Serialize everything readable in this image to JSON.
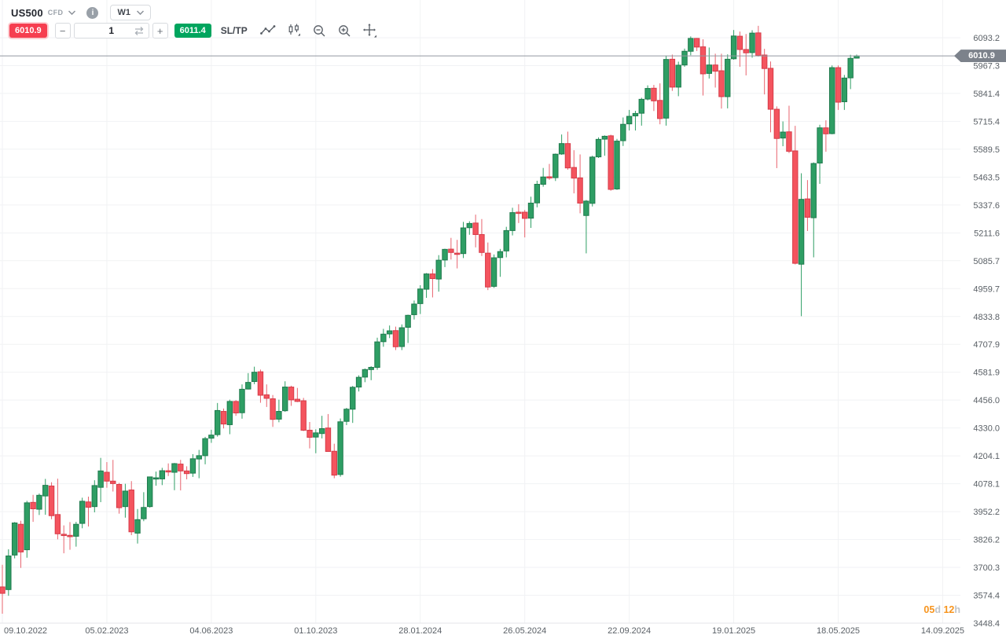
{
  "header": {
    "symbol": "US500",
    "instrument_type": "CFD",
    "timeframe": "W1"
  },
  "order_panel": {
    "sell_price": "6010.9",
    "buy_price": "6011.4",
    "volume_value": "1",
    "minus_label": "−",
    "plus_label": "+",
    "sltp_label": "SL/TP"
  },
  "countdown": {
    "days": "05",
    "days_unit": "d",
    "hours": "12",
    "hours_unit": "h"
  },
  "colors": {
    "up_fill": "#2e9e64",
    "up_border": "#1f7a4d",
    "down_fill": "#f4545e",
    "down_border": "#d63c49",
    "down_wick": "#e8636e",
    "grid": "#f1f2f4",
    "axis_border": "#e4e6e9",
    "axis_text": "#5a6066",
    "price_line": "#9298a0",
    "price_tag_bg": "#7c828b",
    "sell_badge": "#f63e50",
    "buy_badge": "#00a55e",
    "countdown_accent": "#f7941d"
  },
  "chart_data": {
    "type": "candlestick",
    "title": "US500 CFD weekly candlestick chart",
    "symbol": "US500",
    "timeframe": "W1",
    "current_price": 6010.9,
    "current_price_label": "6010.9",
    "ylim": [
      3448.4,
      6093.2
    ],
    "grid": true,
    "y_ticks": [
      "6093.2",
      "5967.3",
      "5841.4",
      "5715.4",
      "5589.5",
      "5463.5",
      "5337.6",
      "5211.6",
      "5085.7",
      "4959.7",
      "4833.8",
      "4707.9",
      "4581.9",
      "4456.0",
      "4330.0",
      "4204.1",
      "4078.1",
      "3952.2",
      "3826.2",
      "3700.3",
      "3574.4",
      "3448.4"
    ],
    "x_ticks": [
      "09.10.2022",
      "05.02.2023",
      "04.06.2023",
      "01.10.2023",
      "28.01.2024",
      "26.05.2024",
      "22.09.2024",
      "19.01.2025",
      "18.05.2025",
      "14.09.2025"
    ],
    "weeks_per_x_tick": 17,
    "first_candle_week": "09.10.2022",
    "candles_ohlc": [
      [
        3612,
        3712,
        3491,
        3583
      ],
      [
        3600,
        3782,
        3572,
        3752
      ],
      [
        3756,
        3905,
        3741,
        3901
      ],
      [
        3895,
        3911,
        3698,
        3770
      ],
      [
        3780,
        4001,
        3744,
        3992
      ],
      [
        3994,
        4028,
        3906,
        3965
      ],
      [
        3963,
        4034,
        3937,
        4026
      ],
      [
        4023,
        4100,
        3938,
        4071
      ],
      [
        4068,
        4085,
        3918,
        3934
      ],
      [
        3939,
        4101,
        3827,
        3852
      ],
      [
        3850,
        3890,
        3764,
        3844
      ],
      [
        3845,
        3905,
        3780,
        3839
      ],
      [
        3841,
        3906,
        3794,
        3895
      ],
      [
        3899,
        4015,
        3877,
        3999
      ],
      [
        3996,
        4020,
        3885,
        3972
      ],
      [
        3975,
        4094,
        3949,
        4070
      ],
      [
        4062,
        4195,
        3995,
        4136
      ],
      [
        4130,
        4176,
        4060,
        4090
      ],
      [
        4090,
        4186,
        4043,
        4079
      ],
      [
        4075,
        4082,
        3943,
        3970
      ],
      [
        3975,
        4078,
        3925,
        4045
      ],
      [
        4050,
        4090,
        3846,
        3861
      ],
      [
        3855,
        3964,
        3808,
        3916
      ],
      [
        3920,
        4040,
        3909,
        3971
      ],
      [
        3975,
        4110,
        3970,
        4109
      ],
      [
        4105,
        4133,
        4069,
        4105
      ],
      [
        4100,
        4150,
        4072,
        4137
      ],
      [
        4137,
        4170,
        4113,
        4133
      ],
      [
        4130,
        4172,
        4049,
        4169
      ],
      [
        4167,
        4186,
        4048,
        4136
      ],
      [
        4136,
        4157,
        4098,
        4124
      ],
      [
        4126,
        4212,
        4109,
        4191
      ],
      [
        4190,
        4231,
        4103,
        4205
      ],
      [
        4205,
        4290,
        4166,
        4282
      ],
      [
        4284,
        4322,
        4263,
        4298
      ],
      [
        4300,
        4443,
        4291,
        4409
      ],
      [
        4405,
        4418,
        4328,
        4348
      ],
      [
        4345,
        4458,
        4302,
        4450
      ],
      [
        4450,
        4456,
        4385,
        4398
      ],
      [
        4399,
        4527,
        4372,
        4505
      ],
      [
        4506,
        4578,
        4504,
        4536
      ],
      [
        4540,
        4607,
        4528,
        4582
      ],
      [
        4584,
        4594,
        4444,
        4478
      ],
      [
        4480,
        4527,
        4425,
        4464
      ],
      [
        4462,
        4479,
        4335,
        4369
      ],
      [
        4370,
        4458,
        4356,
        4405
      ],
      [
        4408,
        4541,
        4403,
        4515
      ],
      [
        4515,
        4521,
        4430,
        4457
      ],
      [
        4460,
        4511,
        4447,
        4450
      ],
      [
        4453,
        4466,
        4316,
        4320
      ],
      [
        4320,
        4357,
        4238,
        4288
      ],
      [
        4289,
        4324,
        4216,
        4308
      ],
      [
        4305,
        4385,
        4283,
        4327
      ],
      [
        4330,
        4393,
        4223,
        4224
      ],
      [
        4225,
        4259,
        4103,
        4117
      ],
      [
        4120,
        4373,
        4110,
        4358
      ],
      [
        4360,
        4421,
        4343,
        4415
      ],
      [
        4415,
        4520,
        4353,
        4514
      ],
      [
        4515,
        4568,
        4495,
        4559
      ],
      [
        4560,
        4599,
        4537,
        4594
      ],
      [
        4594,
        4609,
        4546,
        4604
      ],
      [
        4604,
        4738,
        4593,
        4719
      ],
      [
        4720,
        4778,
        4697,
        4754
      ],
      [
        4755,
        4793,
        4736,
        4769
      ],
      [
        4770,
        4788,
        4682,
        4697
      ],
      [
        4698,
        4798,
        4682,
        4783
      ],
      [
        4785,
        4842,
        4714,
        4839
      ],
      [
        4842,
        4906,
        4820,
        4890
      ],
      [
        4892,
        4975,
        4845,
        4958
      ],
      [
        4957,
        5030,
        4918,
        5026
      ],
      [
        5026,
        5048,
        4920,
        5005
      ],
      [
        5003,
        5111,
        4946,
        5088
      ],
      [
        5089,
        5140,
        5057,
        5137
      ],
      [
        5138,
        5189,
        5091,
        5123
      ],
      [
        5120,
        5180,
        5051,
        5117
      ],
      [
        5118,
        5261,
        5098,
        5234
      ],
      [
        5235,
        5264,
        5203,
        5254
      ],
      [
        5256,
        5294,
        5146,
        5204
      ],
      [
        5204,
        5274,
        5107,
        5123
      ],
      [
        5120,
        5168,
        4953,
        4967
      ],
      [
        4970,
        5114,
        4963,
        5099
      ],
      [
        5100,
        5139,
        5013,
        5127
      ],
      [
        5130,
        5239,
        5101,
        5222
      ],
      [
        5222,
        5325,
        5200,
        5303
      ],
      [
        5305,
        5341,
        5256,
        5304
      ],
      [
        5305,
        5315,
        5191,
        5277
      ],
      [
        5278,
        5375,
        5234,
        5346
      ],
      [
        5347,
        5447,
        5327,
        5431
      ],
      [
        5431,
        5505,
        5420,
        5464
      ],
      [
        5465,
        5523,
        5451,
        5460
      ],
      [
        5461,
        5570,
        5446,
        5567
      ],
      [
        5568,
        5656,
        5564,
        5615
      ],
      [
        5615,
        5669,
        5497,
        5505
      ],
      [
        5507,
        5585,
        5390,
        5459
      ],
      [
        5460,
        5566,
        5300,
        5346
      ],
      [
        5290,
        5360,
        5119,
        5355
      ],
      [
        5345,
        5560,
        5331,
        5554
      ],
      [
        5555,
        5643,
        5550,
        5634
      ],
      [
        5635,
        5652,
        5560,
        5648
      ],
      [
        5650,
        5655,
        5402,
        5408
      ],
      [
        5410,
        5636,
        5406,
        5626
      ],
      [
        5628,
        5733,
        5604,
        5702
      ],
      [
        5704,
        5767,
        5674,
        5738
      ],
      [
        5740,
        5763,
        5674,
        5751
      ],
      [
        5752,
        5822,
        5696,
        5815
      ],
      [
        5816,
        5878,
        5810,
        5864
      ],
      [
        5865,
        5880,
        5762,
        5808
      ],
      [
        5810,
        5887,
        5702,
        5728
      ],
      [
        5730,
        6012,
        5696,
        5995
      ],
      [
        5996,
        6017,
        5853,
        5870
      ],
      [
        5870,
        5985,
        5829,
        5969
      ],
      [
        5970,
        6044,
        5962,
        6032
      ],
      [
        6032,
        6099,
        6014,
        6090
      ],
      [
        6090,
        6092,
        6033,
        6051
      ],
      [
        6052,
        6086,
        5832,
        5930
      ],
      [
        5932,
        6049,
        5909,
        5970
      ],
      [
        5970,
        6021,
        5868,
        5942
      ],
      [
        5944,
        6021,
        5773,
        5827
      ],
      [
        5827,
        6018,
        5774,
        5996
      ],
      [
        5998,
        6128,
        5994,
        6101
      ],
      [
        6100,
        6121,
        5962,
        6040
      ],
      [
        6040,
        6110,
        5923,
        6025
      ],
      [
        6026,
        6127,
        6003,
        6114
      ],
      [
        6115,
        6147,
        6008,
        6013
      ],
      [
        6015,
        6043,
        5837,
        5954
      ],
      [
        5955,
        5986,
        5666,
        5770
      ],
      [
        5770,
        5783,
        5504,
        5638
      ],
      [
        5640,
        5715,
        5603,
        5667
      ],
      [
        5668,
        5786,
        5572,
        5580
      ],
      [
        5582,
        5695,
        5069,
        5074
      ],
      [
        5070,
        5481,
        4835,
        5363
      ],
      [
        5365,
        5450,
        5220,
        5282
      ],
      [
        5280,
        5530,
        5101,
        5525
      ],
      [
        5527,
        5700,
        5433,
        5686
      ],
      [
        5686,
        5720,
        5578,
        5659
      ],
      [
        5660,
        5968,
        5657,
        5958
      ],
      [
        5958,
        5968,
        5767,
        5802
      ],
      [
        5804,
        5925,
        5767,
        5911
      ],
      [
        5912,
        6016,
        5861,
        6000
      ],
      [
        6001,
        6017,
        5999,
        6010.9
      ]
    ]
  }
}
